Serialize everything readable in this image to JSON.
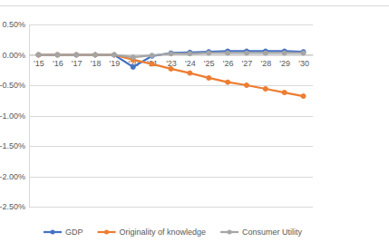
{
  "chart_data": {
    "type": "line",
    "categories": [
      "'15",
      "'16",
      "'17",
      "'18",
      "'19",
      "'20",
      "'21",
      "'23",
      "'24",
      "'25",
      "'26",
      "'27",
      "'28",
      "'29",
      "'30"
    ],
    "series": [
      {
        "name": "GDP",
        "color": "#4472c4",
        "marker": "circle",
        "values": [
          0,
          0,
          0,
          0,
          0,
          -0.2,
          -0.02,
          0.03,
          0.04,
          0.05,
          0.06,
          0.06,
          0.06,
          0.06,
          0.05
        ]
      },
      {
        "name": "Originality of knowledge",
        "color": "#ed7d31",
        "marker": "circle",
        "values": [
          0,
          0,
          0,
          0,
          0,
          -0.08,
          -0.15,
          -0.23,
          -0.3,
          -0.38,
          -0.45,
          -0.5,
          -0.56,
          -0.62,
          -0.68
        ]
      },
      {
        "name": "Consumer Utility",
        "color": "#a5a5a5",
        "marker": "circle",
        "values": [
          0,
          0,
          0,
          0,
          0,
          -0.04,
          -0.01,
          0.02,
          0.02,
          0.03,
          0.03,
          0.03,
          0.03,
          0.03,
          0.03
        ]
      }
    ],
    "ylim": [
      -2.5,
      0.5
    ],
    "yticks": [
      {
        "value": 0.5,
        "label": "0.50%"
      },
      {
        "value": 0,
        "label": "0.00%"
      },
      {
        "value": -0.5,
        "label": "-0.50%"
      },
      {
        "value": -1,
        "label": "-1.00%"
      },
      {
        "value": -1.5,
        "label": "-1.50%"
      },
      {
        "value": -2,
        "label": "-2.00%"
      },
      {
        "value": -2.5,
        "label": "-2.50%"
      }
    ],
    "grid": true,
    "legend": "bottom"
  }
}
